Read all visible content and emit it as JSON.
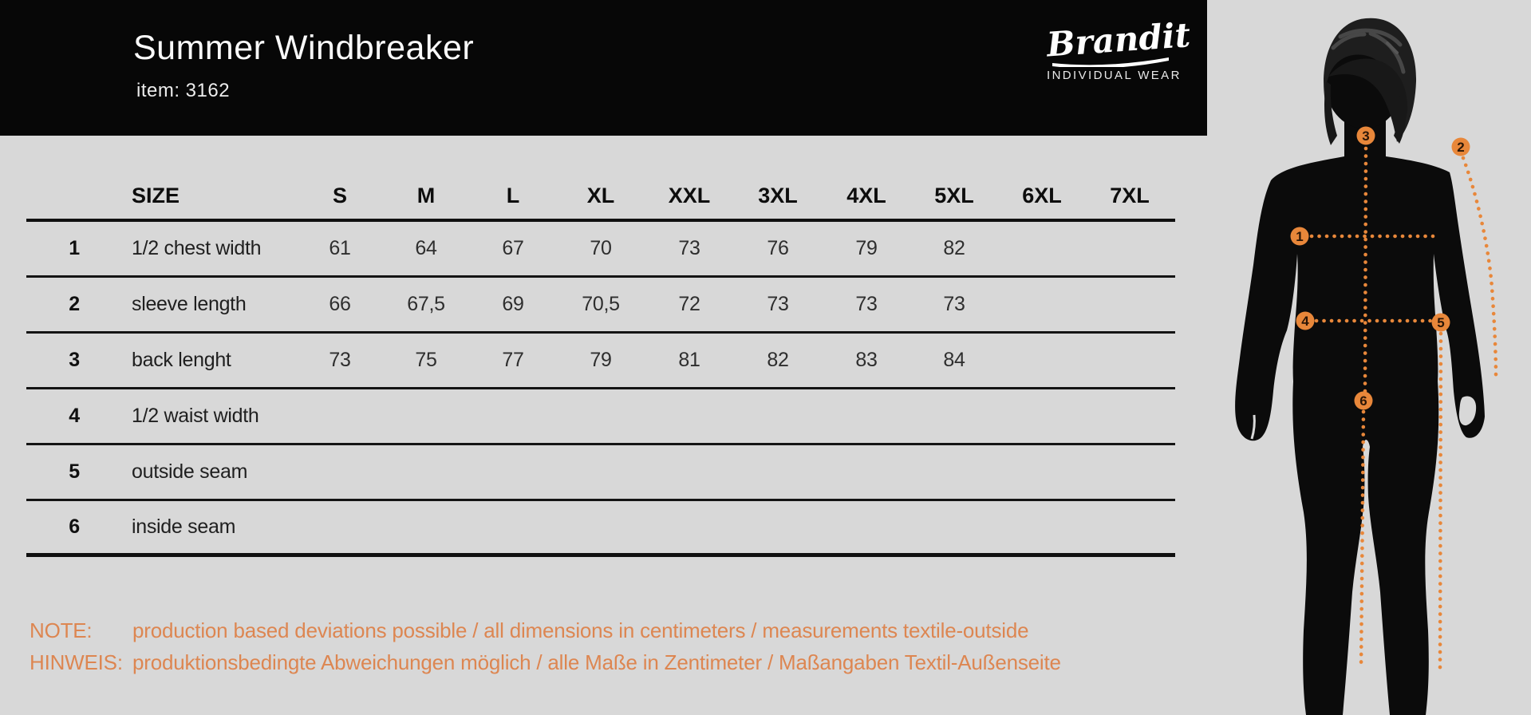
{
  "header": {
    "title": "Summer Windbreaker",
    "item": "item: 3162"
  },
  "logo": {
    "name": "Brandit",
    "tagline": "INDIVIDUAL WEAR"
  },
  "table": {
    "header_label": "SIZE",
    "columns": [
      "S",
      "M",
      "L",
      "XL",
      "XXL",
      "3XL",
      "4XL",
      "5XL",
      "6XL",
      "7XL"
    ],
    "rows": [
      {
        "num": "1",
        "label": "1/2 chest width",
        "values": [
          "61",
          "64",
          "67",
          "70",
          "73",
          "76",
          "79",
          "82",
          "",
          ""
        ]
      },
      {
        "num": "2",
        "label": "sleeve length",
        "values": [
          "66",
          "67,5",
          "69",
          "70,5",
          "72",
          "73",
          "73",
          "73",
          "",
          ""
        ]
      },
      {
        "num": "3",
        "label": "back lenght",
        "values": [
          "73",
          "75",
          "77",
          "79",
          "81",
          "82",
          "83",
          "84",
          "",
          ""
        ]
      },
      {
        "num": "4",
        "label": "1/2 waist width",
        "values": [
          "",
          "",
          "",
          "",
          "",
          "",
          "",
          "",
          "",
          ""
        ]
      },
      {
        "num": "5",
        "label": "outside seam",
        "values": [
          "",
          "",
          "",
          "",
          "",
          "",
          "",
          "",
          "",
          ""
        ]
      },
      {
        "num": "6",
        "label": "inside seam",
        "values": [
          "",
          "",
          "",
          "",
          "",
          "",
          "",
          "",
          "",
          ""
        ]
      }
    ]
  },
  "notes": [
    {
      "label": "NOTE:",
      "text": "production based deviations possible / all dimensions in centimeters / measurements textile-outside"
    },
    {
      "label": "HINWEIS:",
      "text": "produktionsbedingte Abweichungen möglich / alle Maße in Zentimeter / Maßangaben Textil-Außenseite"
    }
  ],
  "figure": {
    "markers": [
      "1",
      "2",
      "3",
      "4",
      "5",
      "6"
    ]
  },
  "colors": {
    "accent_orange": "#e8873a",
    "note_orange": "#dd8651",
    "background_gray": "#d8d8d8",
    "header_black": "#070707",
    "silhouette_black": "#0b0b0b"
  }
}
